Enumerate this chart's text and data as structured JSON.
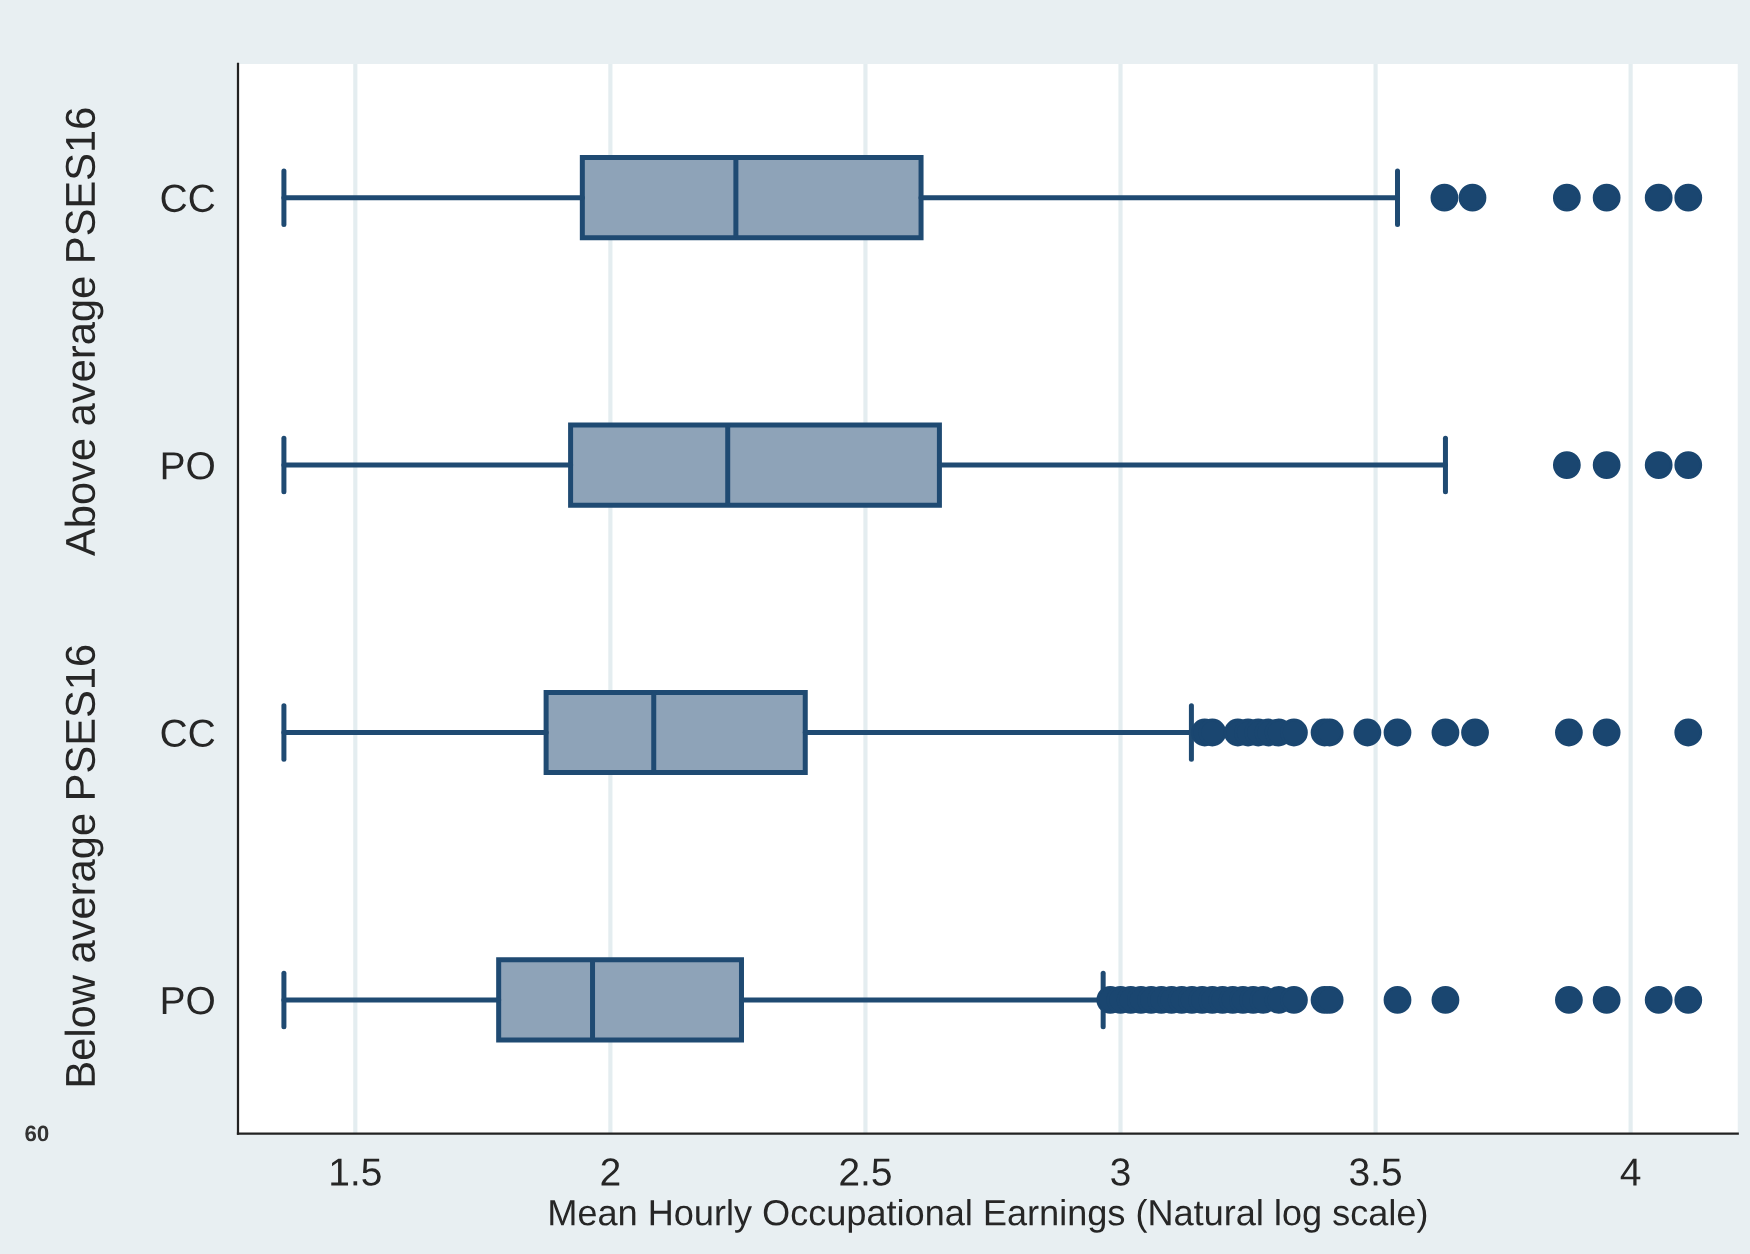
{
  "chart_data": {
    "type": "box",
    "orientation": "horizontal",
    "xlabel": "Mean Hourly Occupational Earnings (Natural log scale)",
    "categories": [
      "CC",
      "PO",
      "CC",
      "PO"
    ],
    "boxes": [
      {
        "low": 1.36,
        "q1": 1.945,
        "median": 2.246,
        "q3": 2.609,
        "high": 3.543,
        "outliers": [
          3.635,
          3.69,
          3.875,
          3.953,
          4.055,
          4.113
        ]
      },
      {
        "low": 1.36,
        "q1": 1.922,
        "median": 2.23,
        "q3": 2.645,
        "high": 3.637,
        "outliers": [
          3.875,
          3.953,
          4.055,
          4.113
        ]
      },
      {
        "low": 1.36,
        "q1": 1.874,
        "median": 2.085,
        "q3": 2.382,
        "high": 3.139,
        "outliers": [
          3.165,
          3.18,
          3.23,
          3.25,
          3.27,
          3.29,
          3.31,
          3.34,
          3.4,
          3.41,
          3.484,
          3.543,
          3.637,
          3.695,
          3.879,
          3.953,
          4.113
        ]
      },
      {
        "low": 1.36,
        "q1": 1.781,
        "median": 1.965,
        "q3": 2.257,
        "high": 2.966,
        "outliers": [
          2.98,
          3.0,
          3.02,
          3.04,
          3.06,
          3.08,
          3.1,
          3.12,
          3.14,
          3.16,
          3.18,
          3.2,
          3.22,
          3.24,
          3.26,
          3.28,
          3.31,
          3.34,
          3.4,
          3.41,
          3.543,
          3.637,
          3.879,
          3.953,
          4.055,
          4.113
        ]
      }
    ],
    "color": "#8ea3b8",
    "xlim": [
      1.27,
      4.21
    ],
    "xticks": [
      1.5,
      2,
      2.5,
      3,
      3.5,
      4
    ],
    "grid": "x",
    "annotations": [
      "Above average PSES16",
      "Below average PSES16",
      "60"
    ]
  }
}
